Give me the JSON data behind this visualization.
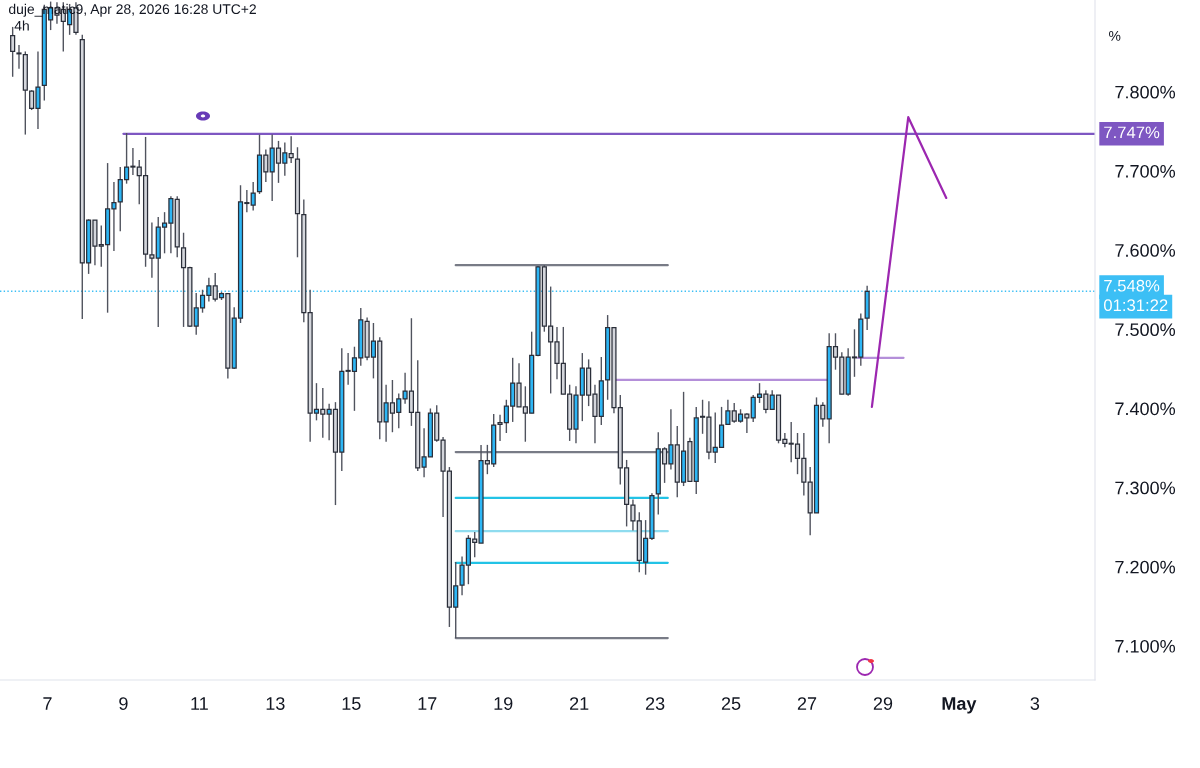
{
  "chart_data": {
    "type": "candlestick",
    "title": "4h",
    "ylabel": "%",
    "annotations": [
      "duje_matic9, Apr 28, 2026 16:28 UTC+2",
      "7.747%",
      "01:31:22"
    ],
    "x": [
      "2026-04-06T02:00",
      "2026-04-06T06:00",
      "2026-04-06T10:00",
      "2026-04-06T14:00",
      "2026-04-06T18:00",
      "2026-04-06T22:00",
      "2026-04-07T02:00",
      "2026-04-07T06:00",
      "2026-04-07T10:00",
      "2026-04-07T14:00",
      "2026-04-07T18:00",
      "2026-04-07T22:00",
      "2026-04-08T02:00",
      "2026-04-08T06:00",
      "2026-04-08T10:00",
      "2026-04-08T14:00",
      "2026-04-08T18:00",
      "2026-04-08T22:00",
      "2026-04-09T02:00",
      "2026-04-09T06:00",
      "2026-04-09T10:00",
      "2026-04-09T14:00",
      "2026-04-09T18:00",
      "2026-04-09T22:00",
      "2026-04-10T02:00",
      "2026-04-10T06:00",
      "2026-04-10T10:00",
      "2026-04-10T14:00",
      "2026-04-10T18:00",
      "2026-04-10T22:00",
      "2026-04-11T02:00",
      "2026-04-11T06:00",
      "2026-04-11T10:00",
      "2026-04-11T14:00",
      "2026-04-11T18:00",
      "2026-04-11T22:00",
      "2026-04-12T02:00",
      "2026-04-12T06:00",
      "2026-04-12T10:00",
      "2026-04-12T14:00",
      "2026-04-12T18:00",
      "2026-04-12T22:00",
      "2026-04-13T02:00",
      "2026-04-13T06:00",
      "2026-04-13T10:00",
      "2026-04-13T14:00",
      "2026-04-13T18:00",
      "2026-04-13T22:00",
      "2026-04-14T02:00",
      "2026-04-14T06:00",
      "2026-04-14T10:00",
      "2026-04-14T14:00",
      "2026-04-14T18:00",
      "2026-04-14T22:00",
      "2026-04-15T02:00",
      "2026-04-15T06:00",
      "2026-04-15T10:00",
      "2026-04-15T14:00",
      "2026-04-15T18:00",
      "2026-04-15T22:00",
      "2026-04-16T02:00",
      "2026-04-16T06:00",
      "2026-04-16T10:00",
      "2026-04-16T14:00",
      "2026-04-16T18:00",
      "2026-04-16T22:00",
      "2026-04-17T02:00",
      "2026-04-17T06:00",
      "2026-04-17T10:00",
      "2026-04-17T14:00",
      "2026-04-17T18:00",
      "2026-04-17T22:00",
      "2026-04-18T02:00",
      "2026-04-18T06:00",
      "2026-04-18T10:00",
      "2026-04-18T14:00",
      "2026-04-18T18:00",
      "2026-04-18T22:00",
      "2026-04-19T02:00",
      "2026-04-19T06:00",
      "2026-04-19T10:00",
      "2026-04-19T14:00",
      "2026-04-19T18:00",
      "2026-04-19T22:00",
      "2026-04-20T02:00",
      "2026-04-20T06:00",
      "2026-04-20T10:00",
      "2026-04-20T14:00",
      "2026-04-20T18:00",
      "2026-04-20T22:00",
      "2026-04-21T02:00",
      "2026-04-21T06:00",
      "2026-04-21T10:00",
      "2026-04-21T14:00",
      "2026-04-21T18:00",
      "2026-04-21T22:00",
      "2026-04-22T02:00",
      "2026-04-22T06:00",
      "2026-04-22T10:00",
      "2026-04-22T14:00",
      "2026-04-22T18:00",
      "2026-04-22T22:00",
      "2026-04-23T02:00",
      "2026-04-23T06:00",
      "2026-04-23T10:00",
      "2026-04-23T14:00",
      "2026-04-23T18:00",
      "2026-04-23T22:00",
      "2026-04-24T02:00",
      "2026-04-24T06:00",
      "2026-04-24T10:00",
      "2026-04-24T14:00",
      "2026-04-24T18:00",
      "2026-04-24T22:00",
      "2026-04-25T02:00",
      "2026-04-25T06:00",
      "2026-04-25T10:00",
      "2026-04-25T14:00",
      "2026-04-25T18:00",
      "2026-04-25T22:00",
      "2026-04-26T02:00",
      "2026-04-26T06:00",
      "2026-04-26T10:00",
      "2026-04-26T14:00",
      "2026-04-26T18:00",
      "2026-04-26T22:00",
      "2026-04-27T02:00",
      "2026-04-27T06:00",
      "2026-04-27T10:00",
      "2026-04-27T14:00",
      "2026-04-27T18:00",
      "2026-04-27T22:00",
      "2026-04-28T02:00",
      "2026-04-28T06:00",
      "2026-04-28T10:00",
      "2026-04-28T14:00"
    ],
    "ohlc": [
      [
        7.871,
        7.882,
        7.819,
        7.851
      ],
      [
        7.849,
        7.859,
        7.829,
        7.848
      ],
      [
        7.847,
        7.851,
        7.746,
        7.802
      ],
      [
        7.801,
        7.802,
        7.777,
        7.779
      ],
      [
        7.779,
        7.851,
        7.753,
        7.806
      ],
      [
        7.808,
        7.91,
        7.789,
        7.904
      ],
      [
        7.891,
        7.914,
        7.878,
        7.906
      ],
      [
        7.906,
        7.913,
        7.886,
        7.897
      ],
      [
        7.904,
        7.913,
        7.851,
        7.889
      ],
      [
        7.885,
        7.911,
        7.872,
        7.904
      ],
      [
        7.906,
        7.913,
        7.872,
        7.875
      ],
      [
        7.866,
        7.872,
        7.513,
        7.584
      ],
      [
        7.584,
        7.639,
        7.57,
        7.638
      ],
      [
        7.638,
        7.638,
        7.581,
        7.605
      ],
      [
        7.607,
        7.631,
        7.579,
        7.605
      ],
      [
        7.607,
        7.71,
        7.521,
        7.652
      ],
      [
        7.652,
        7.686,
        7.599,
        7.66
      ],
      [
        7.661,
        7.705,
        7.624,
        7.689
      ],
      [
        7.689,
        7.748,
        7.684,
        7.705
      ],
      [
        7.706,
        7.729,
        7.695,
        7.705
      ],
      [
        7.705,
        7.714,
        7.658,
        7.694
      ],
      [
        7.694,
        7.743,
        7.579,
        7.595
      ],
      [
        7.594,
        7.635,
        7.565,
        7.59
      ],
      [
        7.59,
        7.642,
        7.503,
        7.629
      ],
      [
        7.629,
        7.648,
        7.596,
        7.634
      ],
      [
        7.634,
        7.668,
        7.596,
        7.665
      ],
      [
        7.664,
        7.668,
        7.591,
        7.604
      ],
      [
        7.603,
        7.622,
        7.503,
        7.578
      ],
      [
        7.578,
        7.579,
        7.503,
        7.504
      ],
      [
        7.504,
        7.546,
        7.493,
        7.527
      ],
      [
        7.527,
        7.55,
        7.521,
        7.543
      ],
      [
        7.543,
        7.565,
        7.535,
        7.555
      ],
      [
        7.555,
        7.571,
        7.535,
        7.538
      ],
      [
        7.54,
        7.547,
        7.537,
        7.545
      ],
      [
        7.545,
        7.546,
        7.438,
        7.451
      ],
      [
        7.451,
        7.528,
        7.45,
        7.514
      ],
      [
        7.514,
        7.682,
        7.508,
        7.661
      ],
      [
        7.66,
        7.676,
        7.648,
        7.659
      ],
      [
        7.657,
        7.686,
        7.65,
        7.672
      ],
      [
        7.674,
        7.746,
        7.671,
        7.72
      ],
      [
        7.72,
        7.727,
        7.686,
        7.699
      ],
      [
        7.699,
        7.746,
        7.662,
        7.729
      ],
      [
        7.729,
        7.738,
        7.685,
        7.71
      ],
      [
        7.71,
        7.736,
        7.694,
        7.723
      ],
      [
        7.722,
        7.744,
        7.71,
        7.717
      ],
      [
        7.715,
        7.73,
        7.591,
        7.646
      ],
      [
        7.645,
        7.664,
        7.509,
        7.521
      ],
      [
        7.521,
        7.55,
        7.358,
        7.394
      ],
      [
        7.394,
        7.432,
        7.385,
        7.399
      ],
      [
        7.399,
        7.426,
        7.363,
        7.393
      ],
      [
        7.393,
        7.406,
        7.36,
        7.399
      ],
      [
        7.399,
        7.408,
        7.278,
        7.345
      ],
      [
        7.345,
        7.476,
        7.321,
        7.447
      ],
      [
        7.448,
        7.47,
        7.43,
        7.447
      ],
      [
        7.447,
        7.478,
        7.397,
        7.464
      ],
      [
        7.464,
        7.527,
        7.454,
        7.512
      ],
      [
        7.51,
        7.515,
        7.461,
        7.465
      ],
      [
        7.465,
        7.508,
        7.438,
        7.485
      ],
      [
        7.485,
        7.49,
        7.361,
        7.383
      ],
      [
        7.383,
        7.43,
        7.358,
        7.407
      ],
      [
        7.407,
        7.436,
        7.37,
        7.394
      ],
      [
        7.395,
        7.419,
        7.375,
        7.412
      ],
      [
        7.412,
        7.445,
        7.406,
        7.422
      ],
      [
        7.422,
        7.514,
        7.378,
        7.395
      ],
      [
        7.395,
        7.461,
        7.321,
        7.325
      ],
      [
        7.326,
        7.375,
        7.313,
        7.339
      ],
      [
        7.339,
        7.4,
        7.339,
        7.394
      ],
      [
        7.394,
        7.404,
        7.358,
        7.36
      ],
      [
        7.36,
        7.364,
        7.263,
        7.321
      ],
      [
        7.321,
        7.326,
        7.124,
        7.149
      ],
      [
        7.149,
        7.206,
        7.11,
        7.176
      ],
      [
        7.177,
        7.213,
        7.164,
        7.202
      ],
      [
        7.202,
        7.24,
        7.178,
        7.236
      ],
      [
        7.235,
        7.244,
        7.212,
        7.231
      ],
      [
        7.23,
        7.354,
        7.23,
        7.334
      ],
      [
        7.334,
        7.354,
        7.317,
        7.33
      ],
      [
        7.33,
        7.393,
        7.326,
        7.379
      ],
      [
        7.382,
        7.392,
        7.359,
        7.38
      ],
      [
        7.382,
        7.411,
        7.369,
        7.403
      ],
      [
        7.403,
        7.464,
        7.383,
        7.432
      ],
      [
        7.432,
        7.457,
        7.402,
        7.402
      ],
      [
        7.402,
        7.428,
        7.358,
        7.394
      ],
      [
        7.394,
        7.497,
        7.394,
        7.467
      ],
      [
        7.467,
        7.58,
        7.466,
        7.579
      ],
      [
        7.579,
        7.581,
        7.497,
        7.504
      ],
      [
        7.504,
        7.554,
        7.419,
        7.484
      ],
      [
        7.484,
        7.503,
        7.437,
        7.457
      ],
      [
        7.457,
        7.503,
        7.418,
        7.418
      ],
      [
        7.418,
        7.43,
        7.359,
        7.374
      ],
      [
        7.374,
        7.428,
        7.356,
        7.417
      ],
      [
        7.417,
        7.47,
        7.384,
        7.451
      ],
      [
        7.451,
        7.462,
        7.403,
        7.417
      ],
      [
        7.418,
        7.43,
        7.356,
        7.39
      ],
      [
        7.39,
        7.465,
        7.379,
        7.435
      ],
      [
        7.436,
        7.518,
        7.411,
        7.502
      ],
      [
        7.502,
        7.503,
        7.394,
        7.401
      ],
      [
        7.401,
        7.417,
        7.304,
        7.325
      ],
      [
        7.325,
        7.335,
        7.251,
        7.279
      ],
      [
        7.278,
        7.285,
        7.246,
        7.258
      ],
      [
        7.258,
        7.269,
        7.193,
        7.208
      ],
      [
        7.206,
        7.259,
        7.19,
        7.236
      ],
      [
        7.236,
        7.293,
        7.234,
        7.29
      ],
      [
        7.292,
        7.37,
        7.266,
        7.349
      ],
      [
        7.349,
        7.351,
        7.306,
        7.33
      ],
      [
        7.33,
        7.399,
        7.323,
        7.354
      ],
      [
        7.354,
        7.378,
        7.288,
        7.307
      ],
      [
        7.307,
        7.421,
        7.302,
        7.346
      ],
      [
        7.358,
        7.363,
        7.307,
        7.308
      ],
      [
        7.308,
        7.402,
        7.292,
        7.388
      ],
      [
        7.39,
        7.411,
        7.368,
        7.389
      ],
      [
        7.389,
        7.409,
        7.336,
        7.345
      ],
      [
        7.345,
        7.395,
        7.331,
        7.351
      ],
      [
        7.351,
        7.402,
        7.351,
        7.379
      ],
      [
        7.38,
        7.411,
        7.379,
        7.397
      ],
      [
        7.397,
        7.407,
        7.382,
        7.384
      ],
      [
        7.384,
        7.399,
        7.382,
        7.393
      ],
      [
        7.393,
        7.394,
        7.369,
        7.388
      ],
      [
        7.388,
        7.417,
        7.383,
        7.414
      ],
      [
        7.414,
        7.432,
        7.407,
        7.418
      ],
      [
        7.418,
        7.423,
        7.394,
        7.399
      ],
      [
        7.399,
        7.423,
        7.399,
        7.417
      ],
      [
        7.417,
        7.417,
        7.356,
        7.36
      ],
      [
        7.361,
        7.369,
        7.351,
        7.356
      ],
      [
        7.356,
        7.383,
        7.332,
        7.355
      ],
      [
        7.355,
        7.369,
        7.317,
        7.337
      ],
      [
        7.337,
        7.369,
        7.29,
        7.307
      ],
      [
        7.307,
        7.326,
        7.24,
        7.268
      ],
      [
        7.268,
        7.414,
        7.268,
        7.404
      ],
      [
        7.404,
        7.408,
        7.377,
        7.387
      ],
      [
        7.387,
        7.495,
        7.356,
        7.478
      ],
      [
        7.478,
        7.495,
        7.449,
        7.465
      ],
      [
        7.465,
        7.471,
        7.418,
        7.418
      ],
      [
        7.418,
        7.476,
        7.416,
        7.465
      ],
      [
        7.465,
        7.5,
        7.44,
        7.464
      ],
      [
        7.465,
        7.52,
        7.454,
        7.513
      ],
      [
        7.514,
        7.555,
        7.499,
        7.548
      ]
    ],
    "colors": [
      "#d4d6dc",
      "#d4d6dc",
      "#d4d6dc",
      "#d4d6dc",
      "#2db6f5",
      "#2db6f5",
      "#2db6f5",
      "#d4d6dc",
      "#d4d6dc",
      "#2db6f5",
      "#d4d6dc",
      "#d4d6dc",
      "#2db6f5",
      "#d4d6dc",
      "#d4d6dc",
      "#2db6f5",
      "#2db6f5",
      "#2db6f5",
      "#2db6f5",
      "#d4d6dc",
      "#d4d6dc",
      "#d4d6dc",
      "#d4d6dc",
      "#2db6f5",
      "#2db6f5",
      "#2db6f5",
      "#d4d6dc",
      "#d4d6dc",
      "#d4d6dc",
      "#2db6f5",
      "#2db6f5",
      "#2db6f5",
      "#d4d6dc",
      "#2db6f5",
      "#d4d6dc",
      "#2db6f5",
      "#2db6f5",
      "#d4d6dc",
      "#2db6f5",
      "#2db6f5",
      "#d4d6dc",
      "#2db6f5",
      "#d4d6dc",
      "#2db6f5",
      "#d4d6dc",
      "#d4d6dc",
      "#d4d6dc",
      "#d4d6dc",
      "#2db6f5",
      "#d4d6dc",
      "#2db6f5",
      "#d4d6dc",
      "#2db6f5",
      "#d4d6dc",
      "#2db6f5",
      "#2db6f5",
      "#d4d6dc",
      "#2db6f5",
      "#d4d6dc",
      "#2db6f5",
      "#d4d6dc",
      "#2db6f5",
      "#2db6f5",
      "#d4d6dc",
      "#d4d6dc",
      "#2db6f5",
      "#2db6f5",
      "#d4d6dc",
      "#d4d6dc",
      "#d4d6dc",
      "#2db6f5",
      "#2db6f5",
      "#2db6f5",
      "#d4d6dc",
      "#2db6f5",
      "#d4d6dc",
      "#2db6f5",
      "#d4d6dc",
      "#2db6f5",
      "#2db6f5",
      "#d4d6dc",
      "#d4d6dc",
      "#2db6f5",
      "#2db6f5",
      "#d4d6dc",
      "#d4d6dc",
      "#d4d6dc",
      "#d4d6dc",
      "#d4d6dc",
      "#2db6f5",
      "#2db6f5",
      "#d4d6dc",
      "#d4d6dc",
      "#2db6f5",
      "#2db6f5",
      "#d4d6dc",
      "#d4d6dc",
      "#d4d6dc",
      "#d4d6dc",
      "#d4d6dc",
      "#2db6f5",
      "#2db6f5",
      "#2db6f5",
      "#d4d6dc",
      "#2db6f5",
      "#d4d6dc",
      "#2db6f5",
      "#d4d6dc",
      "#2db6f5",
      "#d4d6dc",
      "#d4d6dc",
      "#2db6f5",
      "#2db6f5",
      "#2db6f5",
      "#d4d6dc",
      "#2db6f5",
      "#d4d6dc",
      "#2db6f5",
      "#2db6f5",
      "#d4d6dc",
      "#2db6f5",
      "#d4d6dc",
      "#d4d6dc",
      "#d4d6dc",
      "#d4d6dc",
      "#d4d6dc",
      "#d4d6dc",
      "#2db6f5",
      "#d4d6dc",
      "#2db6f5",
      "#d4d6dc",
      "#d4d6dc",
      "#2db6f5",
      "#d4d6dc",
      "#2db6f5",
      "#2db6f5"
    ],
    "series": [
      {
        "type": "line",
        "color": "#7e57c2",
        "x": [
          "2026-04-09T00:00",
          "2026-05-04T14:00"
        ],
        "values": [
          7.747,
          7.747
        ]
      },
      {
        "type": "line",
        "color": "#787b86",
        "x": [
          "2026-04-17T18:00",
          "2026-04-23T08:00"
        ],
        "values": [
          7.581,
          7.581
        ]
      },
      {
        "type": "line",
        "color": "#787b86",
        "x": [
          "2026-04-17T18:00",
          "2026-04-23T08:00"
        ],
        "values": [
          7.345,
          7.345
        ]
      },
      {
        "type": "line",
        "color": "#22c3e6",
        "x": [
          "2026-04-17T18:00",
          "2026-04-23T08:00"
        ],
        "values": [
          7.287,
          7.287
        ]
      },
      {
        "type": "line",
        "color": "#8fdcef",
        "x": [
          "2026-04-17T18:00",
          "2026-04-23T08:00"
        ],
        "values": [
          7.245,
          7.245
        ]
      },
      {
        "type": "line",
        "color": "#22c3e6",
        "x": [
          "2026-04-17T18:00",
          "2026-04-23T08:00"
        ],
        "values": [
          7.205,
          7.205
        ]
      },
      {
        "type": "line",
        "color": "#787b86",
        "x": [
          "2026-04-17T18:00",
          "2026-04-23T08:00"
        ],
        "values": [
          7.11,
          7.11
        ]
      },
      {
        "type": "line",
        "color": "#b48fd9",
        "x": [
          "2026-04-21T22:00",
          "2026-04-27T13:00"
        ],
        "values": [
          7.436,
          7.436
        ]
      },
      {
        "type": "line",
        "color": "#b48fd9",
        "x": [
          "2026-04-28T08:00",
          "2026-04-29T13:00"
        ],
        "values": [
          7.464,
          7.464
        ]
      },
      {
        "type": "line",
        "color": "#9c27b0",
        "x": [
          "2026-04-28T17:00",
          "2026-04-29T16:00",
          "2026-04-30T16:00"
        ],
        "values": [
          7.402,
          7.768,
          7.666
        ]
      }
    ],
    "ref_lines": [
      {
        "axis": "y",
        "value": 7.548,
        "label": "7.548%",
        "color": "#3cbff5",
        "line_style": "dotted"
      }
    ],
    "xlim": [
      "2026-04-05T18:00",
      "2026-05-04T14:00"
    ],
    "xticks": [
      {
        "value": "2026-04-07",
        "label": "7"
      },
      {
        "value": "2026-04-09",
        "label": "9"
      },
      {
        "value": "2026-04-11",
        "label": "11"
      },
      {
        "value": "2026-04-13",
        "label": "13"
      },
      {
        "value": "2026-04-15",
        "label": "15"
      },
      {
        "value": "2026-04-17",
        "label": "17"
      },
      {
        "value": "2026-04-19",
        "label": "19"
      },
      {
        "value": "2026-04-21",
        "label": "21"
      },
      {
        "value": "2026-04-23",
        "label": "23"
      },
      {
        "value": "2026-04-25",
        "label": "25"
      },
      {
        "value": "2026-04-27",
        "label": "27"
      },
      {
        "value": "2026-04-29",
        "label": "29"
      },
      {
        "value": "2026-05-01",
        "label": "May"
      },
      {
        "value": "2026-05-03",
        "label": "3"
      }
    ],
    "ylim": [
      7.057,
      7.916
    ],
    "yticks": [
      {
        "value": 7.1,
        "label": "7.100%"
      },
      {
        "value": 7.2,
        "label": "7.200%"
      },
      {
        "value": 7.3,
        "label": "7.300%"
      },
      {
        "value": 7.4,
        "label": "7.400%"
      },
      {
        "value": 7.5,
        "label": "7.500%"
      },
      {
        "value": 7.6,
        "label": "7.600%"
      },
      {
        "value": 7.7,
        "label": "7.700%"
      },
      {
        "value": 7.8,
        "label": "7.800%"
      }
    ],
    "grid": false,
    "legend": false
  }
}
